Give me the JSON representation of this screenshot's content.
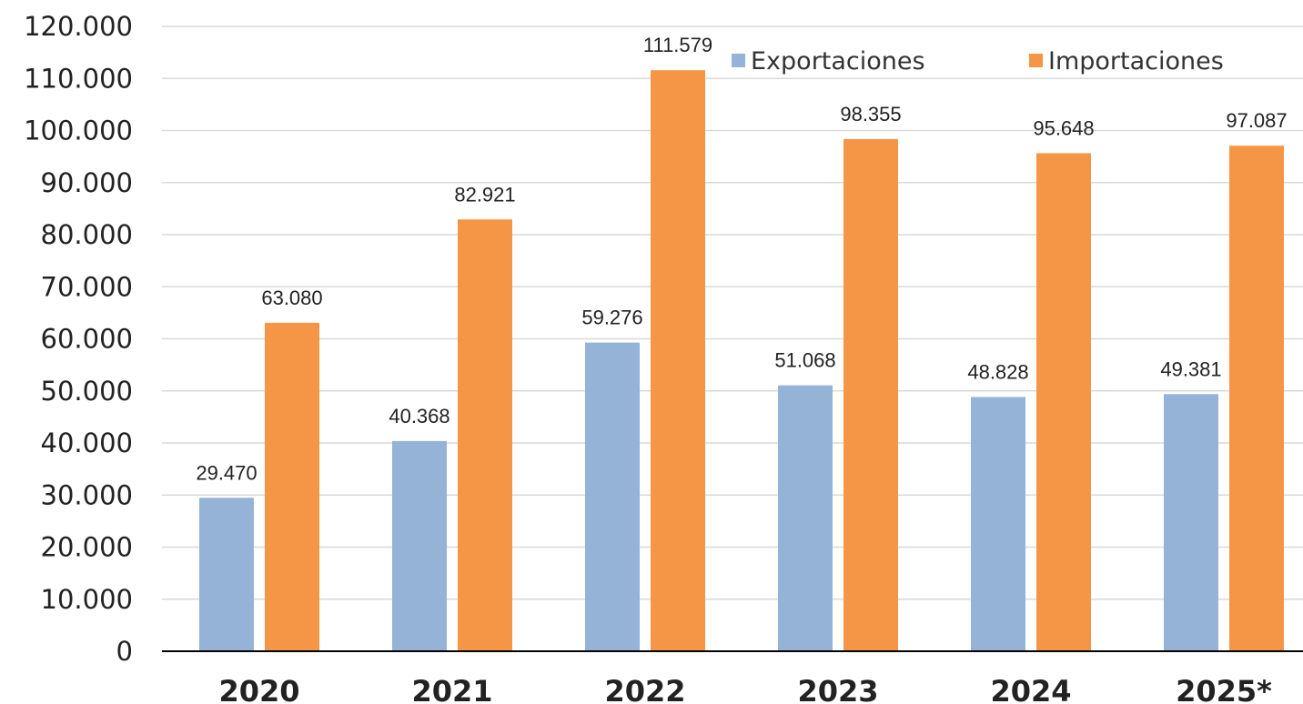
{
  "chart_data": {
    "type": "bar",
    "title": "",
    "xlabel": "",
    "ylabel": "",
    "categories": [
      "2020",
      "2021",
      "2022",
      "2023",
      "2024",
      "2025*"
    ],
    "series": [
      {
        "name": "Exportaciones",
        "color": "#95b3d7",
        "values": [
          29470,
          40368,
          59276,
          51068,
          48828,
          49381
        ],
        "labels": [
          "29.470",
          "40.368",
          "59.276",
          "51.068",
          "48.828",
          "49.381"
        ]
      },
      {
        "name": "Importaciones",
        "color": "#f59646",
        "values": [
          63080,
          82921,
          111579,
          98355,
          95648,
          97087
        ],
        "labels": [
          "63.080",
          "82.921",
          "111.579",
          "98.355",
          "95.648",
          "97.087"
        ]
      }
    ],
    "ylim": [
      0,
      120000
    ],
    "ytick_values": [
      0,
      10000,
      20000,
      30000,
      40000,
      50000,
      60000,
      70000,
      80000,
      90000,
      100000,
      110000,
      120000
    ],
    "ytick_labels": [
      "0",
      "10.000",
      "20.000",
      "30.000",
      "40.000",
      "50.000",
      "60.000",
      "70.000",
      "80.000",
      "90.000",
      "100.000",
      "110.000",
      "120.000"
    ],
    "grid": true,
    "legend": "top-right",
    "gridline_color": "#d9d9d9",
    "axis_color": "#000000"
  }
}
